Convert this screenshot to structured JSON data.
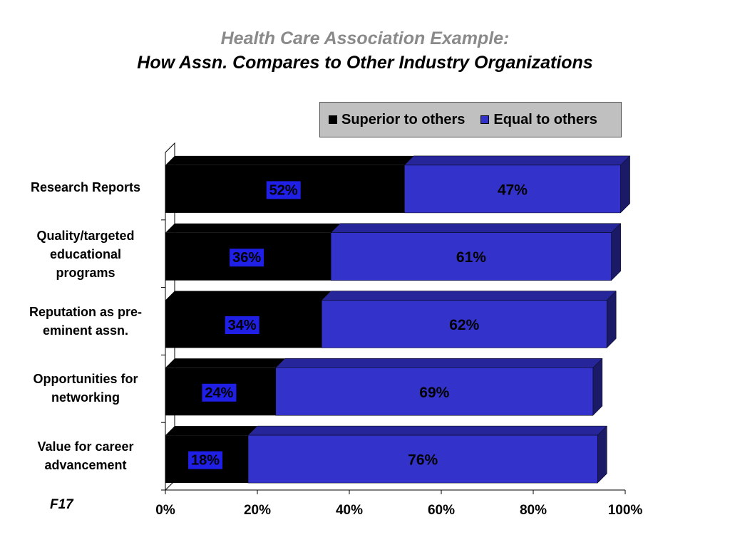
{
  "title_line1": "Health Care Association Example:",
  "title_line2": "How Assn. Compares to Other Industry Organizations",
  "footnote": "F17",
  "colors": {
    "superior": "#000000",
    "equal": "#3333cc",
    "equal_top": "#26269a",
    "equal_side": "#1a1a66",
    "label_box": "#1f1fe6"
  },
  "chart_data": {
    "type": "bar",
    "orientation": "horizontal",
    "stacked": true,
    "categories": [
      "Research Reports",
      "Quality/targeted educational programs",
      "Reputation as pre-eminent assn.",
      "Opportunities for networking",
      "Value for career advancement"
    ],
    "category_lines": [
      [
        "Research Reports"
      ],
      [
        "Quality/targeted",
        "educational",
        "programs"
      ],
      [
        "Reputation as pre-",
        "eminent assn."
      ],
      [
        "Opportunities for",
        "networking"
      ],
      [
        "Value for career",
        "advancement"
      ]
    ],
    "series": [
      {
        "name": "Superior to others",
        "values": [
          52,
          36,
          34,
          24,
          18
        ],
        "labels": [
          "52%",
          "36%",
          "34%",
          "24%",
          "18%"
        ]
      },
      {
        "name": "Equal to others",
        "values": [
          47,
          61,
          62,
          69,
          76
        ],
        "labels": [
          "47%",
          "61%",
          "62%",
          "69%",
          "76%"
        ]
      }
    ],
    "xlim": [
      0,
      100
    ],
    "x_ticks": [
      "0%",
      "20%",
      "40%",
      "60%",
      "80%",
      "100%"
    ],
    "legend_position": "top-right",
    "grid": false
  }
}
